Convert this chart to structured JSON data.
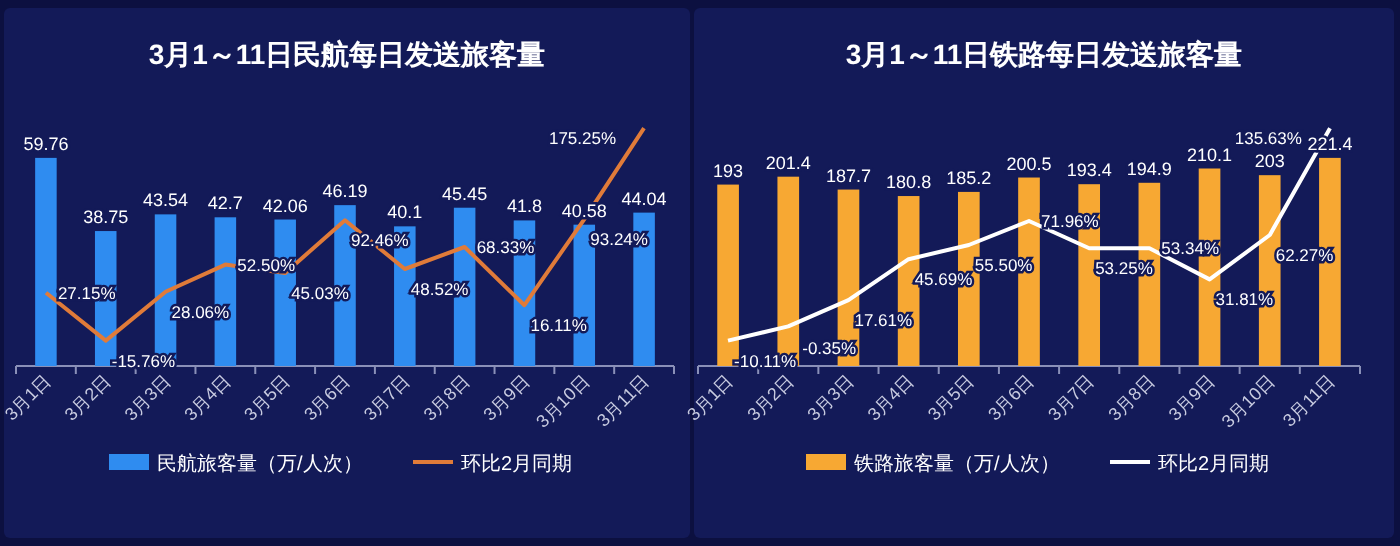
{
  "chart_data": [
    {
      "type": "bar",
      "title": "3月1～11日民航每日发送旅客量",
      "categories": [
        "3月1日",
        "3月2日",
        "3月3日",
        "3月4日",
        "3月5日",
        "3月6日",
        "3月7日",
        "3月8日",
        "3月9日",
        "3月10日",
        "3月11日"
      ],
      "series": [
        {
          "name": "民航旅客量（万/人次）",
          "color": "#2f8cf0",
          "values": [
            59.76,
            38.75,
            43.54,
            42.7,
            42.06,
            46.19,
            40.1,
            45.45,
            41.8,
            40.58,
            44.04
          ],
          "value_labels": [
            "59.76",
            "38.75",
            "43.54",
            "42.7",
            "42.06",
            "46.19",
            "40.1",
            "45.45",
            "41.8",
            "40.58",
            "44.04"
          ]
        },
        {
          "name": "环比2月同期",
          "type": "line",
          "axis": "y2",
          "color": "#e07b39",
          "values": [
            27.15,
            -15.76,
            28.06,
            52.5,
            45.03,
            92.46,
            48.52,
            68.33,
            16.11,
            93.24,
            175.25
          ],
          "value_labels": [
            "27.15%",
            "-15.76%",
            "28.06%",
            "52.50%",
            "45.03%",
            "92.46%",
            "48.52%",
            "68.33%",
            "16.11%",
            "93.24%",
            "175.25%"
          ]
        }
      ],
      "tick_labels": "x",
      "legend": "bottom"
    },
    {
      "type": "bar",
      "title": "3月1～11日铁路每日发送旅客量",
      "categories": [
        "3月1日",
        "3月2日",
        "3月3日",
        "3月4日",
        "3月5日",
        "3月6日",
        "3月7日",
        "3月8日",
        "3月9日",
        "3月10日",
        "3月11日"
      ],
      "series": [
        {
          "name": "铁路旅客量（万/人次）",
          "color": "#f7a833",
          "values": [
            193,
            201.4,
            187.7,
            180.8,
            185.2,
            200.5,
            193.4,
            194.9,
            210.1,
            203,
            221.4
          ],
          "value_labels": [
            "193",
            "201.4",
            "187.7",
            "180.8",
            "185.2",
            "200.5",
            "193.4",
            "194.9",
            "210.1",
            "203",
            "221.4"
          ]
        },
        {
          "name": "环比2月同期",
          "type": "line",
          "axis": "y2",
          "color": "#ffffff",
          "values": [
            -10.11,
            -0.35,
            17.61,
            45.69,
            55.5,
            71.96,
            53.25,
            53.34,
            31.81,
            62.27,
            135.63
          ],
          "value_labels": [
            "-10.11%",
            "-0.35%",
            "17.61%",
            "45.69%",
            "55.50%",
            "71.96%",
            "53.25%",
            "53.34%",
            "31.81%",
            "62.27%",
            "135.63%"
          ]
        }
      ],
      "tick_labels": "x",
      "legend": "bottom"
    }
  ]
}
